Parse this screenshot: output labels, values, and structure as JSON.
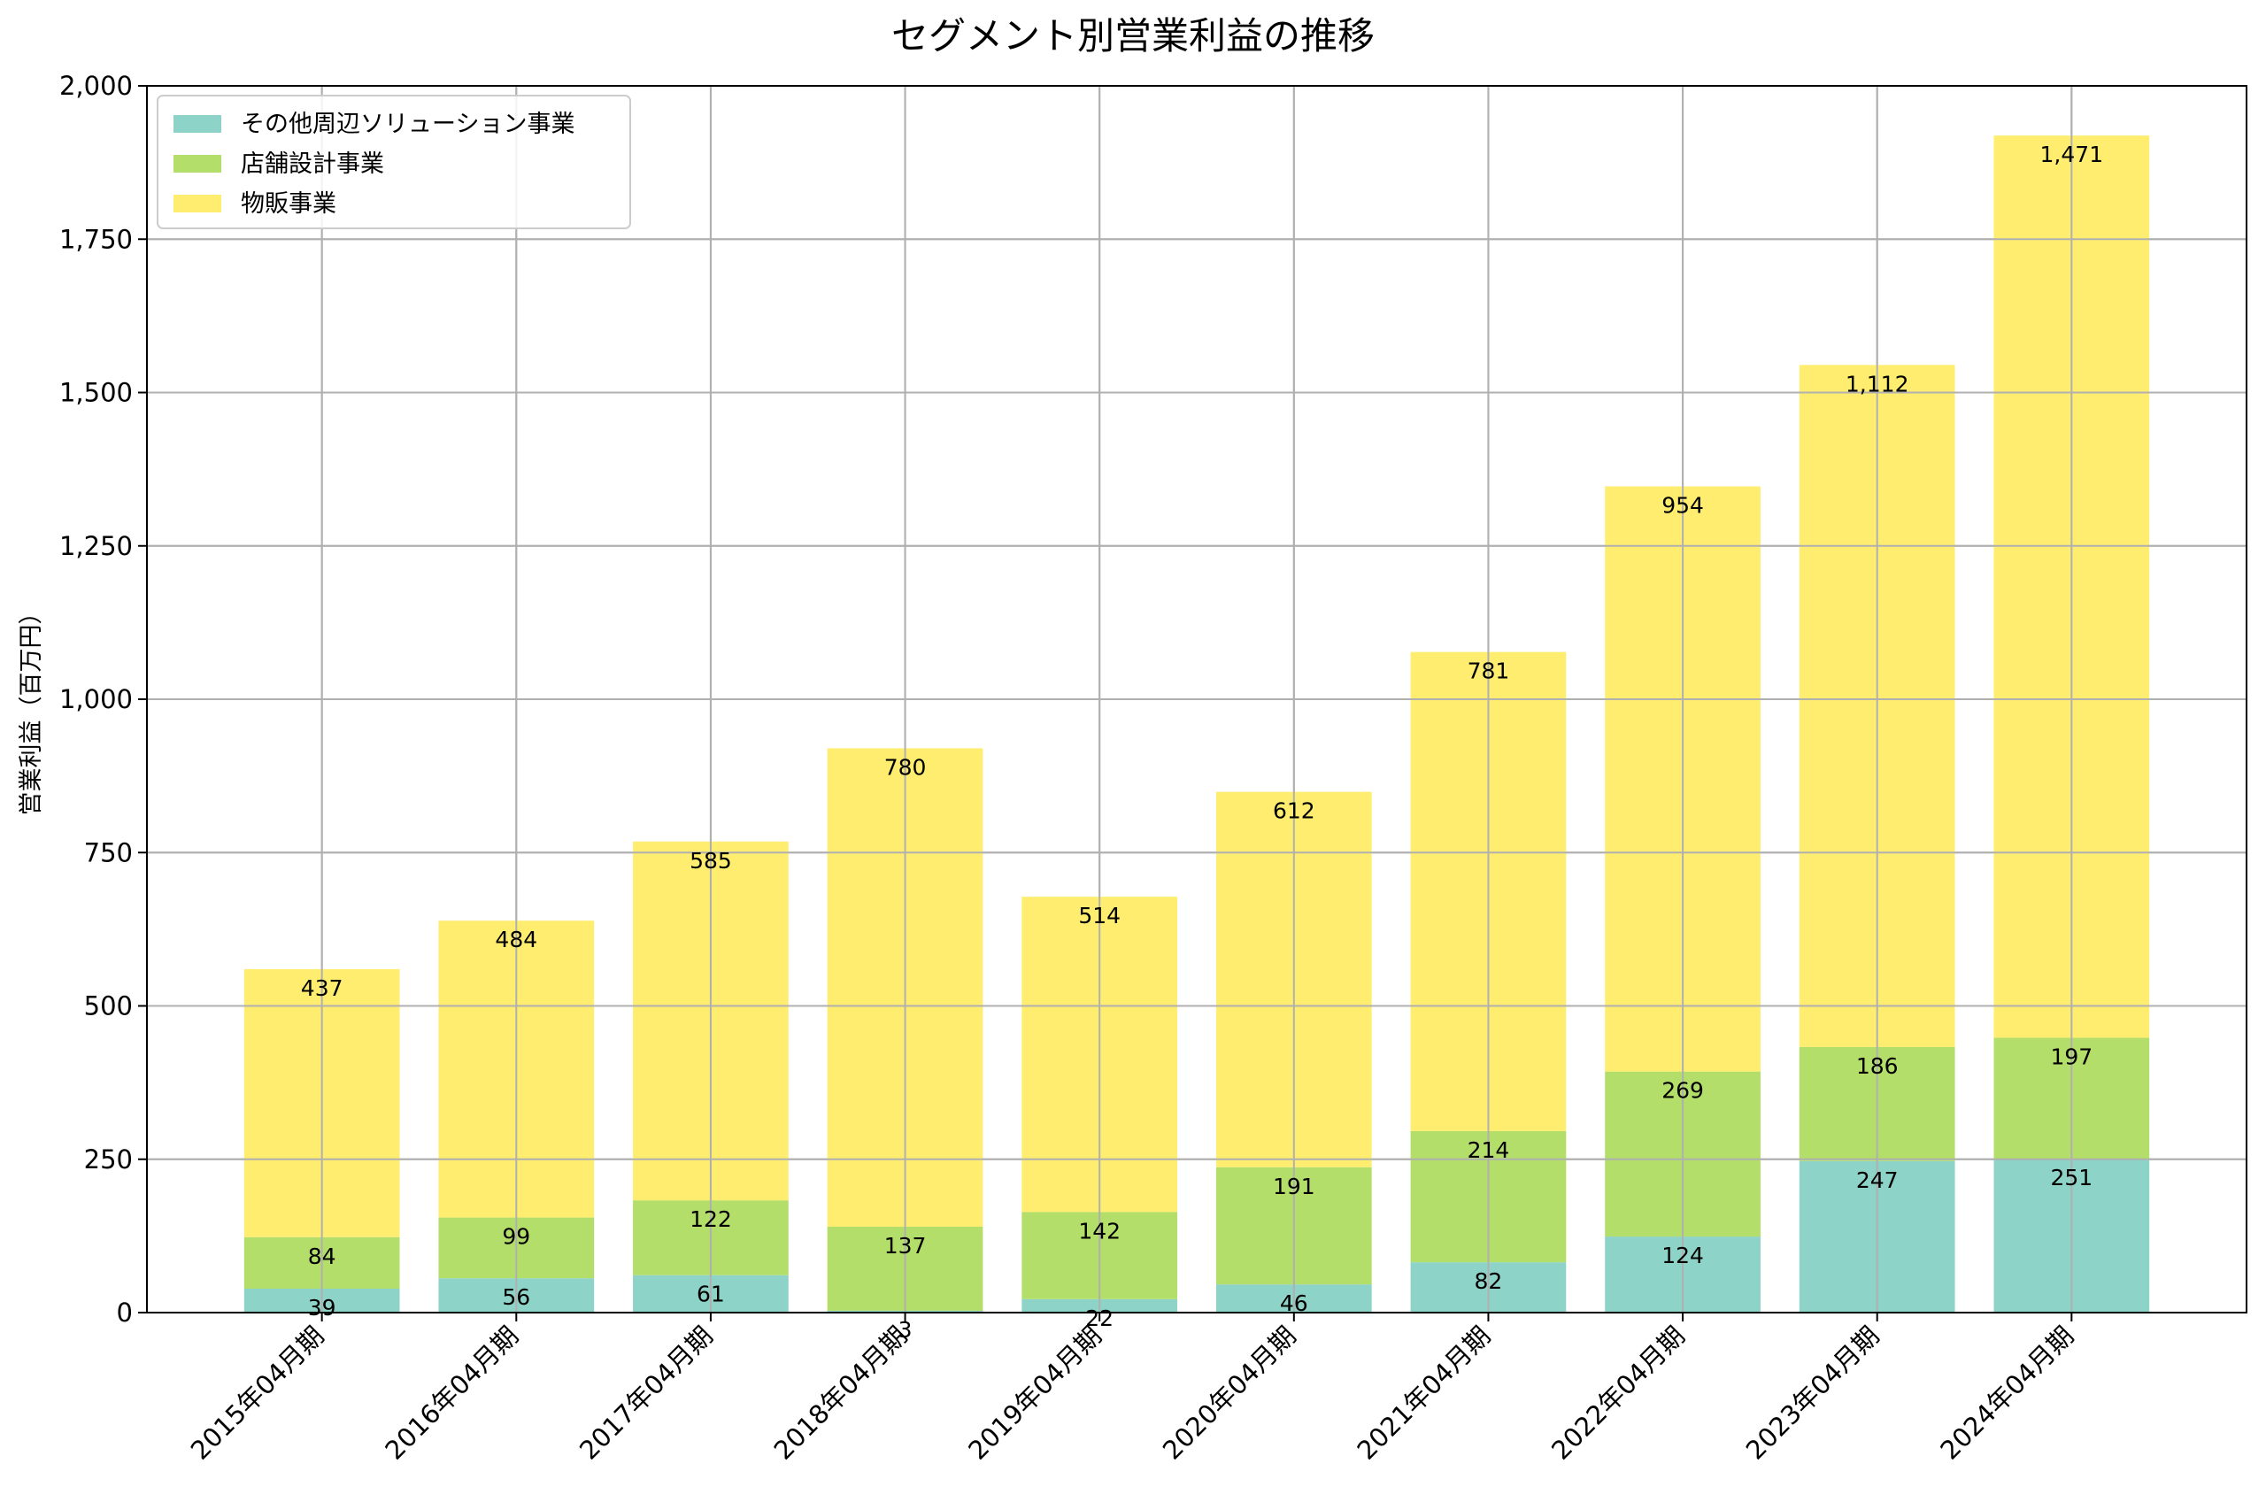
{
  "chart_data": {
    "type": "bar",
    "stacked": true,
    "title": "セグメント別営業利益の推移",
    "xlabel": "",
    "ylabel": "営業利益（百万円）",
    "ylim": [
      0,
      2000
    ],
    "yticks": [
      0,
      250,
      500,
      750,
      1000,
      1250,
      1500,
      1750,
      2000
    ],
    "ytick_labels": [
      "0",
      "250",
      "500",
      "750",
      "1,000",
      "1,250",
      "1,500",
      "1,750",
      "2,000"
    ],
    "grid": true,
    "legend_position": "top-left",
    "categories": [
      "2015年04月期",
      "2016年04月期",
      "2017年04月期",
      "2018年04月期",
      "2019年04月期",
      "2020年04月期",
      "2021年04月期",
      "2022年04月期",
      "2023年04月期",
      "2024年04月期"
    ],
    "series": [
      {
        "name": "その他周辺ソリューション事業",
        "color": "#8dd3c7",
        "values": [
          39,
          56,
          61,
          3,
          22,
          46,
          82,
          124,
          247,
          251
        ],
        "labels": [
          "39",
          "56",
          "61",
          "3",
          "22",
          "46",
          "82",
          "124",
          "247",
          "251"
        ]
      },
      {
        "name": "店舗設計事業",
        "color": "#b3de69",
        "values": [
          84,
          99,
          122,
          137,
          142,
          191,
          214,
          269,
          186,
          197
        ],
        "labels": [
          "84",
          "99",
          "122",
          "137",
          "142",
          "191",
          "214",
          "269",
          "186",
          "197"
        ]
      },
      {
        "name": "物販事業",
        "color": "#ffed6f",
        "values": [
          437,
          484,
          585,
          780,
          514,
          612,
          781,
          954,
          1112,
          1471
        ],
        "labels": [
          "437",
          "484",
          "585",
          "780",
          "514",
          "612",
          "781",
          "954",
          "1,112",
          "1,471"
        ]
      }
    ]
  }
}
